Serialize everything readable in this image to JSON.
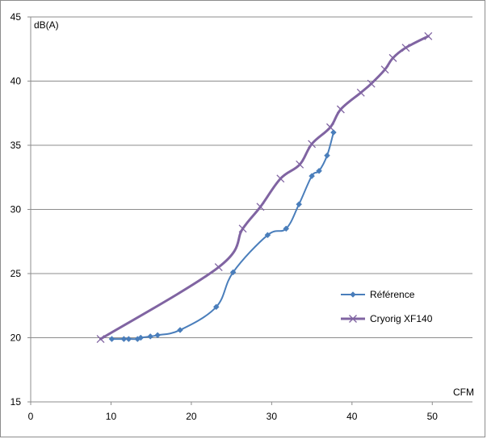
{
  "chart_data": {
    "type": "line",
    "xlabel": "CFM",
    "ylabel": "dB(A)",
    "xlim": [
      0,
      55
    ],
    "ylim": [
      15,
      45
    ],
    "x_ticks": [
      "0",
      "10",
      "20",
      "30",
      "40",
      "50"
    ],
    "y_ticks": [
      "15",
      "20",
      "25",
      "30",
      "35",
      "40",
      "45"
    ],
    "grid": "horizontal",
    "legend_position": "right",
    "series": [
      {
        "name": "Référence",
        "color": "#4a7ebb",
        "marker": "diamond",
        "x": [
          10.1,
          11.6,
          12.2,
          13.3,
          13.7,
          14.9,
          15.8,
          18.6,
          23.1,
          25.2,
          29.5,
          31.8,
          33.4,
          35,
          35.9,
          36.9,
          37.7
        ],
        "y": [
          19.9,
          19.9,
          19.9,
          19.9,
          20.0,
          20.1,
          20.2,
          20.6,
          22.4,
          25.1,
          28.0,
          28.5,
          30.4,
          32.6,
          33.0,
          34.2,
          36.0
        ]
      },
      {
        "name": "Cryorig XF140",
        "color": "#8064a2",
        "marker": "x",
        "x": [
          8.7,
          23.4,
          26.4,
          28.6,
          31.1,
          33.5,
          35.0,
          37.3,
          38.6,
          41.1,
          42.4,
          44.1,
          45.1,
          46.7,
          49.5
        ],
        "y": [
          19.9,
          25.5,
          28.5,
          30.2,
          32.4,
          33.5,
          35.1,
          36.4,
          37.8,
          39.1,
          39.8,
          40.9,
          41.8,
          42.6,
          43.5
        ]
      }
    ]
  }
}
